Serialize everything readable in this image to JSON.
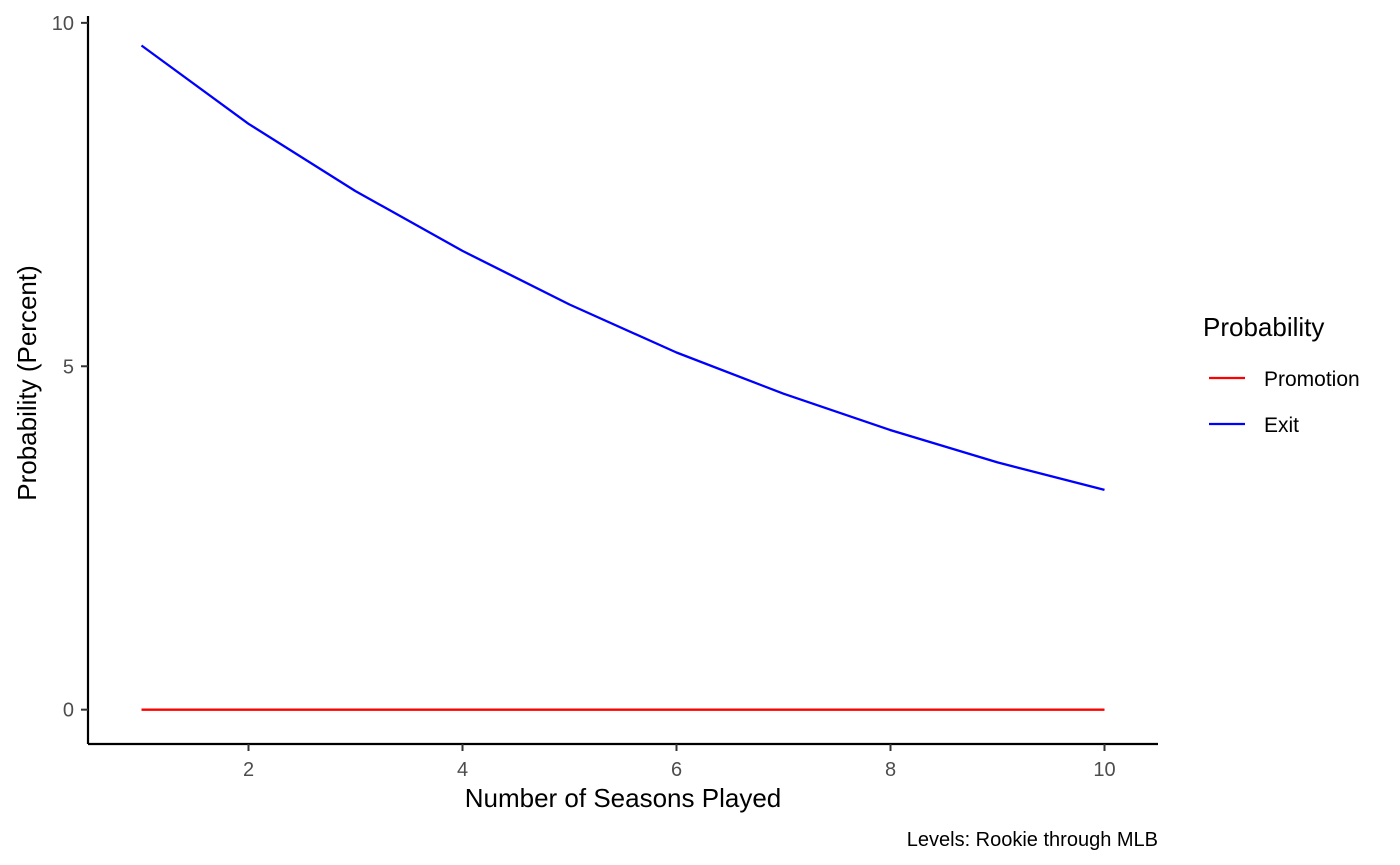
{
  "chart_data": {
    "type": "line",
    "xlabel": "Number of Seasons Played",
    "ylabel": "Probability (Percent)",
    "caption": "Levels: Rookie through MLB",
    "xlim": [
      0.5,
      10.5
    ],
    "ylim": [
      -0.5,
      10.1
    ],
    "xticks": [
      2,
      4,
      6,
      8,
      10
    ],
    "yticks": [
      0,
      5,
      10
    ],
    "grid": false,
    "legend": {
      "title": "Probability",
      "position": "right"
    },
    "x": [
      1,
      2,
      3,
      4,
      5,
      6,
      7,
      8,
      9,
      10
    ],
    "series": [
      {
        "name": "Promotion",
        "color": "#ff0000",
        "values": [
          0,
          0,
          0,
          0,
          0,
          0,
          0,
          0,
          0,
          0
        ]
      },
      {
        "name": "Exit",
        "color": "#0000ff",
        "values": [
          9.67,
          8.53,
          7.55,
          6.68,
          5.9,
          5.2,
          4.6,
          4.07,
          3.6,
          3.2
        ]
      }
    ]
  }
}
